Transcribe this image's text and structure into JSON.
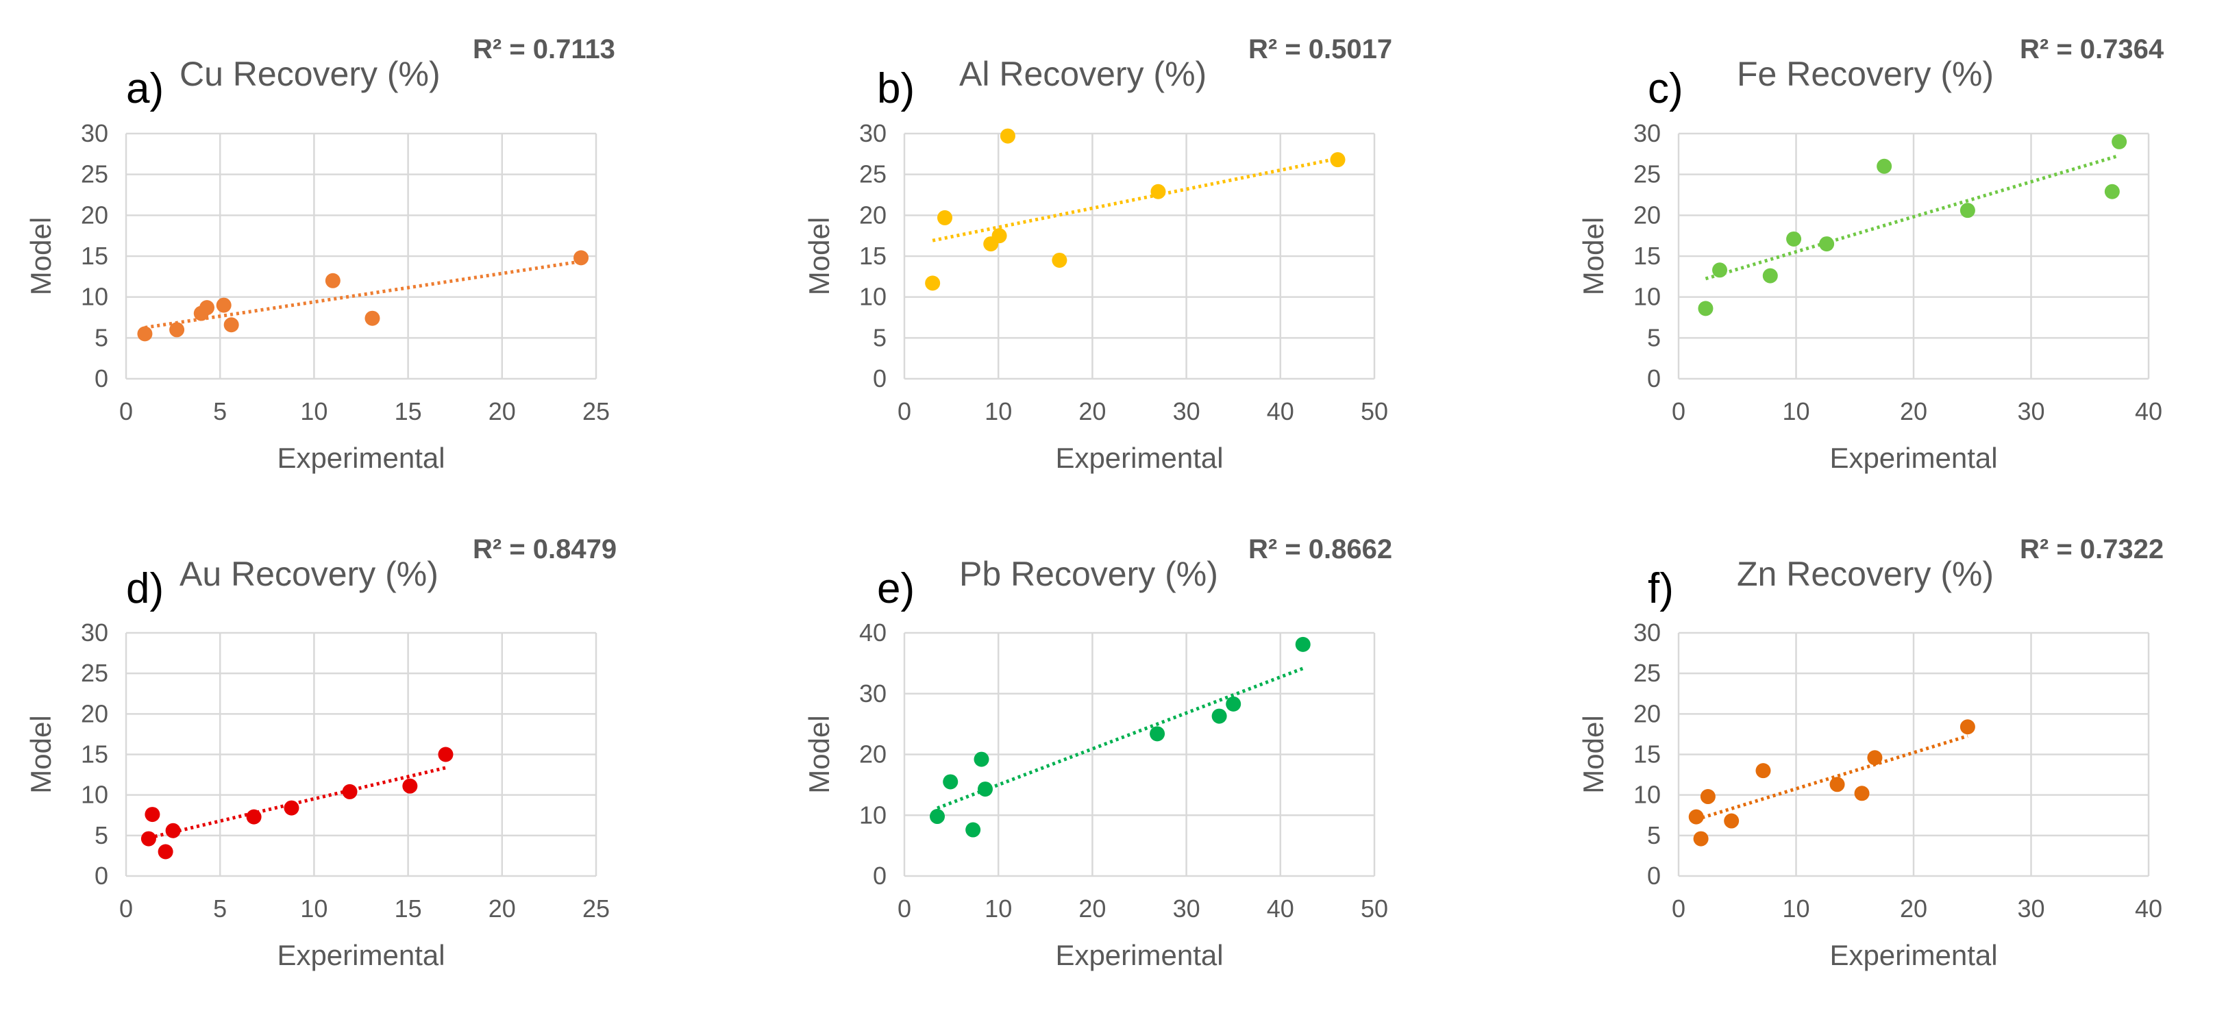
{
  "chart_data": [
    {
      "type": "scatter",
      "panel": "a)",
      "title": "Cu Recovery (%)",
      "annotation": "R² = 0.7113",
      "xlabel": "Experimental",
      "ylabel": "Model",
      "xlim": [
        0,
        25
      ],
      "ylim": [
        0,
        30
      ],
      "xticks": [
        0,
        5,
        10,
        15,
        20,
        25
      ],
      "yticks": [
        0,
        5,
        10,
        15,
        20,
        25,
        30
      ],
      "color": "#ED7D31",
      "grid": true,
      "trendline": "linear",
      "points": [
        [
          1.0,
          5.5
        ],
        [
          2.7,
          6.0
        ],
        [
          4.0,
          8.0
        ],
        [
          4.3,
          8.7
        ],
        [
          5.2,
          9.0
        ],
        [
          5.6,
          6.6
        ],
        [
          11.0,
          12.0
        ],
        [
          13.1,
          7.4
        ],
        [
          24.2,
          14.8
        ]
      ]
    },
    {
      "type": "scatter",
      "panel": "b)",
      "title": "Al Recovery (%)",
      "annotation": "R² = 0.5017",
      "xlabel": "Experimental",
      "ylabel": "Model",
      "xlim": [
        0,
        50
      ],
      "ylim": [
        0,
        30
      ],
      "xticks": [
        0,
        10,
        20,
        30,
        40,
        50
      ],
      "yticks": [
        0,
        5,
        10,
        15,
        20,
        25,
        30
      ],
      "color": "#FFC000",
      "grid": true,
      "trendline": "linear",
      "points": [
        [
          3.0,
          11.7
        ],
        [
          4.3,
          19.7
        ],
        [
          9.2,
          16.5
        ],
        [
          10.1,
          17.5
        ],
        [
          11.0,
          29.7
        ],
        [
          16.5,
          14.5
        ],
        [
          27.0,
          22.9
        ],
        [
          46.1,
          26.8
        ]
      ]
    },
    {
      "type": "scatter",
      "panel": "c)",
      "title": "Fe Recovery (%)",
      "annotation": "R² = 0.7364",
      "xlabel": "Experimental",
      "ylabel": "Model",
      "xlim": [
        0,
        40
      ],
      "ylim": [
        0,
        30
      ],
      "xticks": [
        0,
        10,
        20,
        30,
        40
      ],
      "yticks": [
        0,
        5,
        10,
        15,
        20,
        25,
        30
      ],
      "color": "#70C845",
      "grid": true,
      "trendline": "linear",
      "points": [
        [
          2.3,
          8.6
        ],
        [
          3.5,
          13.3
        ],
        [
          7.8,
          12.6
        ],
        [
          9.8,
          17.1
        ],
        [
          12.6,
          16.5
        ],
        [
          17.5,
          26.0
        ],
        [
          24.6,
          20.6
        ],
        [
          36.9,
          22.9
        ],
        [
          37.5,
          29.0
        ]
      ]
    },
    {
      "type": "scatter",
      "panel": "d)",
      "title": "Au Recovery (%)",
      "annotation": "R² = 0.8479",
      "xlabel": "Experimental",
      "ylabel": "Model",
      "xlim": [
        0,
        25
      ],
      "ylim": [
        0,
        30
      ],
      "xticks": [
        0,
        5,
        10,
        15,
        20,
        25
      ],
      "yticks": [
        0,
        5,
        10,
        15,
        20,
        25,
        30
      ],
      "color": "#E60000",
      "grid": true,
      "trendline": "linear",
      "points": [
        [
          1.2,
          4.6
        ],
        [
          1.4,
          7.6
        ],
        [
          2.1,
          3.0
        ],
        [
          2.5,
          5.6
        ],
        [
          6.8,
          7.3
        ],
        [
          8.8,
          8.4
        ],
        [
          11.9,
          10.4
        ],
        [
          15.1,
          11.1
        ],
        [
          17.0,
          15.0
        ]
      ]
    },
    {
      "type": "scatter",
      "panel": "e)",
      "title": "Pb Recovery (%)",
      "annotation": "R² = 0.8662",
      "xlabel": "Experimental",
      "ylabel": "Model",
      "xlim": [
        0,
        50
      ],
      "ylim": [
        0,
        40
      ],
      "xticks": [
        0,
        10,
        20,
        30,
        40,
        50
      ],
      "yticks": [
        0,
        10,
        20,
        30,
        40
      ],
      "color": "#00B050",
      "grid": true,
      "trendline": "linear",
      "points": [
        [
          3.5,
          9.8
        ],
        [
          4.9,
          15.5
        ],
        [
          7.3,
          7.6
        ],
        [
          8.2,
          19.2
        ],
        [
          8.6,
          14.3
        ],
        [
          26.9,
          23.4
        ],
        [
          33.5,
          26.3
        ],
        [
          35.0,
          28.3
        ],
        [
          42.4,
          38.1
        ]
      ]
    },
    {
      "type": "scatter",
      "panel": "f)",
      "title": "Zn Recovery (%)",
      "annotation": "R² = 0.7322",
      "xlabel": "Experimental",
      "ylabel": "Model",
      "xlim": [
        0,
        40
      ],
      "ylim": [
        0,
        30
      ],
      "xticks": [
        0,
        10,
        20,
        30,
        40
      ],
      "yticks": [
        0,
        5,
        10,
        15,
        20,
        25,
        30
      ],
      "color": "#E46C0A",
      "grid": true,
      "trendline": "linear",
      "points": [
        [
          1.5,
          7.3
        ],
        [
          1.9,
          4.6
        ],
        [
          2.5,
          9.8
        ],
        [
          4.5,
          6.8
        ],
        [
          7.2,
          13.0
        ],
        [
          13.5,
          11.3
        ],
        [
          15.6,
          10.2
        ],
        [
          16.7,
          14.6
        ],
        [
          24.6,
          18.4
        ]
      ]
    }
  ]
}
